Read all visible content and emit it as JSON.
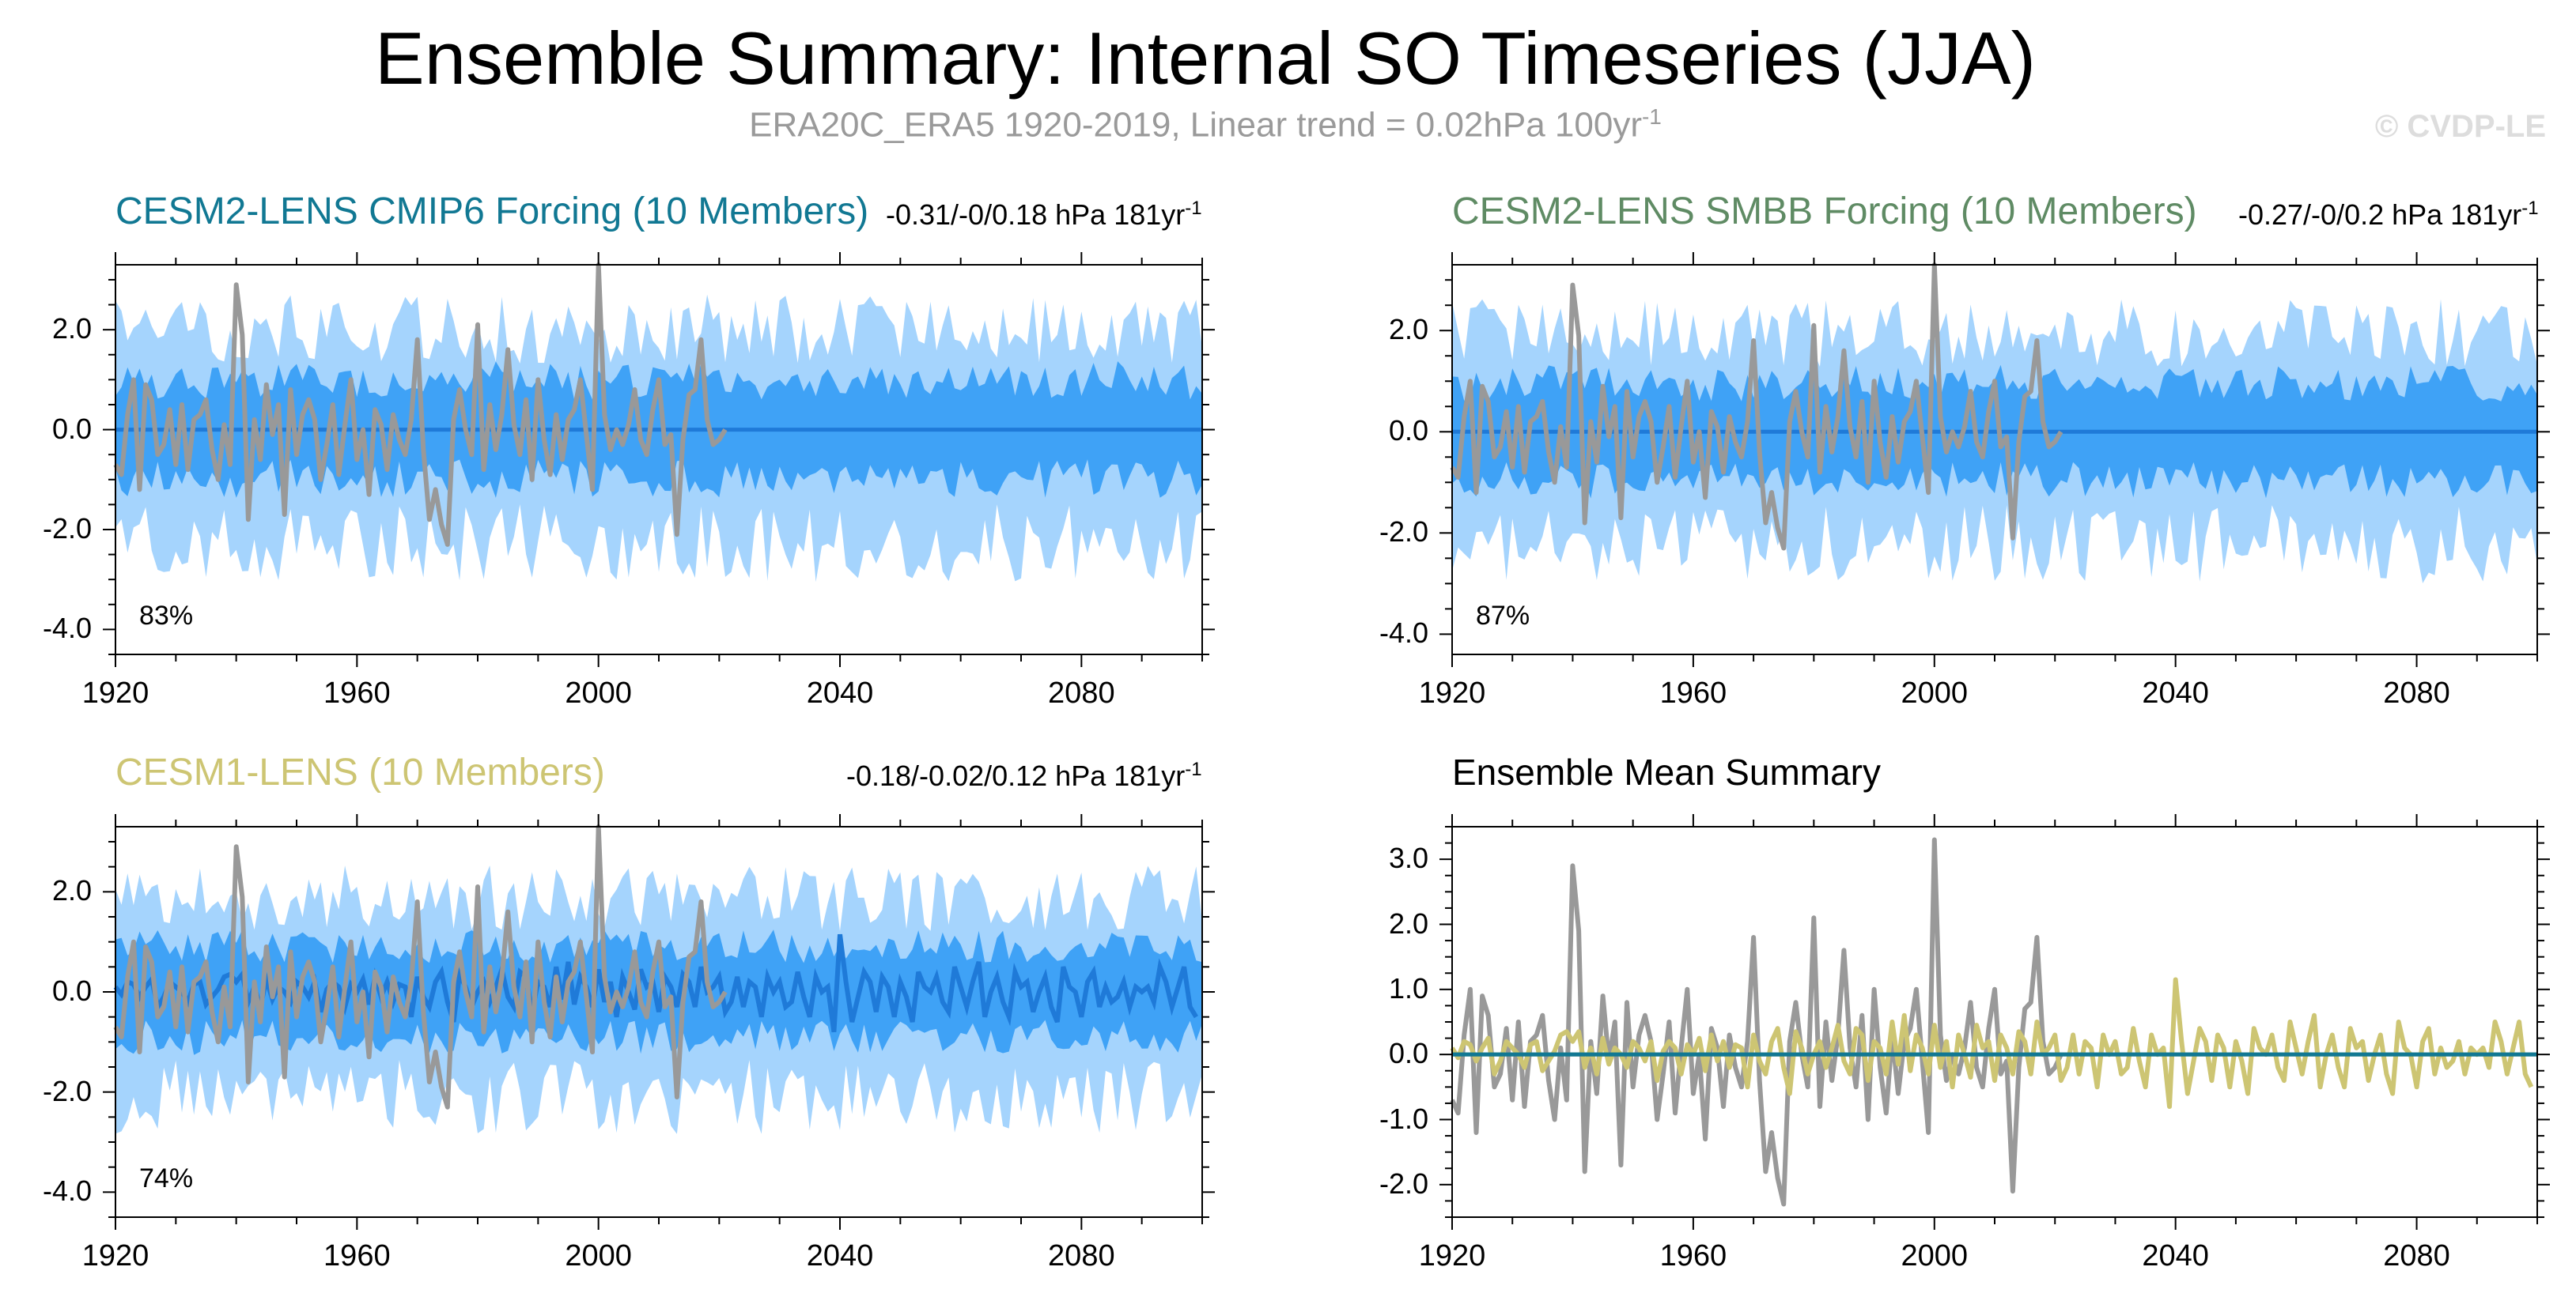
{
  "figure": {
    "title": "Ensemble Summary: Internal SO Timeseries (JJA)",
    "subtitle": "ERA20C_ERA5 1920-2019, Linear trend = 0.02hPa 100yr",
    "subtitle_sup": "-1",
    "credit": "© CVDP-LE"
  },
  "colors": {
    "band_outer": "#a5d4fd",
    "band_inner": "#3fa2f6",
    "ens_mean_line": "#1f7ad8",
    "observations": "#999999",
    "cesm2_cmip6": "#117893",
    "cesm2_smbb": "#5f8b64",
    "cesm1": "#cdc573",
    "summary_title": "#000000"
  },
  "chart_data": [
    {
      "type": "area",
      "id": "p1",
      "title": "CESM2-LENS CMIP6 Forcing (10 Members)",
      "trend_text": "-0.31/-0/0.18 hPa 181yr",
      "trend_sup": "-1",
      "pct_label": "83%",
      "xlim": [
        1920,
        2100
      ],
      "ylim": [
        -4.5,
        3.3
      ],
      "yticks": [
        -4.0,
        -2.0,
        0.0,
        2.0
      ],
      "ytick_labels": [
        "-4.0",
        "-2.0",
        "0.0",
        "2.0"
      ],
      "xticks": [
        1920,
        1960,
        2000,
        2040,
        2080
      ],
      "xtick_labels": [
        "1920",
        "1960",
        "2000",
        "2040",
        "2080"
      ],
      "ens_mean_constant": 0.0,
      "band_outer_amplitude": [
        1.75,
        2.45
      ],
      "band_inner_amplitude": [
        0.85,
        1.2
      ],
      "seed": 11
    },
    {
      "type": "area",
      "id": "p2",
      "title": "CESM2-LENS SMBB Forcing (10 Members)",
      "trend_text": "-0.27/-0/0.2 hPa 181yr",
      "trend_sup": "-1",
      "pct_label": "87%",
      "xlim": [
        1920,
        2100
      ],
      "ylim": [
        -4.4,
        3.3
      ],
      "yticks": [
        -4.0,
        -2.0,
        0.0,
        2.0
      ],
      "ytick_labels": [
        "-4.0",
        "-2.0",
        "0.0",
        "2.0"
      ],
      "xticks": [
        1920,
        1960,
        2000,
        2040,
        2080
      ],
      "xtick_labels": [
        "1920",
        "1960",
        "2000",
        "2040",
        "2080"
      ],
      "ens_mean_constant": 0.0,
      "band_outer_amplitude": [
        1.7,
        2.4
      ],
      "band_inner_amplitude": [
        0.85,
        1.15
      ],
      "seed": 23
    },
    {
      "type": "area",
      "id": "p3",
      "title": "CESM1-LENS (10 Members)",
      "trend_text": "-0.18/-0.02/0.12 hPa 181yr",
      "trend_sup": "-1",
      "pct_label": "74%",
      "xlim": [
        1920,
        2100
      ],
      "ylim": [
        -4.5,
        3.3
      ],
      "yticks": [
        -4.0,
        -2.0,
        0.0,
        2.0
      ],
      "ytick_labels": [
        "-4.0",
        "-2.0",
        "0.0",
        "2.0"
      ],
      "xticks": [
        1920,
        1960,
        2000,
        2040,
        2080
      ],
      "xtick_labels": [
        "1920",
        "1960",
        "2000",
        "2040",
        "2080"
      ],
      "ens_mean_varies": true,
      "band_outer_amplitude": [
        1.6,
        2.3
      ],
      "band_inner_amplitude": [
        0.8,
        1.1
      ],
      "seed": 37
    },
    {
      "type": "line",
      "id": "p4",
      "title": "Ensemble Mean Summary",
      "xlim": [
        1920,
        2100
      ],
      "ylim": [
        -2.5,
        3.5
      ],
      "yticks": [
        -2.0,
        -1.0,
        0.0,
        1.0,
        2.0,
        3.0
      ],
      "ytick_labels": [
        "-2.0",
        "-1.0",
        "0.0",
        "1.0",
        "2.0",
        "3.0"
      ],
      "xticks": [
        1920,
        1960,
        2000,
        2040,
        2080
      ],
      "xtick_labels": [
        "1920",
        "1960",
        "2000",
        "2040",
        "2080"
      ],
      "series": [
        {
          "name": "ERA20C_ERA5 observations",
          "color_key": "observations",
          "x_start": 1920
        },
        {
          "name": "CESM1-LENS ensemble mean",
          "color_key": "cesm1",
          "x_start": 1920
        },
        {
          "name": "CESM2-LENS SMBB ensemble mean",
          "color_key": "cesm2_smbb",
          "constant": 0.0
        },
        {
          "name": "CESM2-LENS CMIP6 ensemble mean",
          "color_key": "cesm2_cmip6",
          "constant": 0.0
        }
      ]
    }
  ],
  "observations": {
    "x_start": 1920,
    "values": [
      -0.7,
      -0.9,
      0.3,
      1.0,
      -1.2,
      0.9,
      0.6,
      -0.5,
      -0.3,
      0.4,
      -0.7,
      0.5,
      -0.8,
      0.2,
      0.3,
      0.6,
      -0.4,
      -1.0,
      0.1,
      -0.7,
      2.9,
      1.9,
      -1.8,
      0.2,
      -0.6,
      0.9,
      -0.1,
      0.5,
      -1.7,
      0.8,
      -0.5,
      0.3,
      0.6,
      0.2,
      -1.0,
      -0.3,
      0.5,
      -0.9,
      0.1,
      1.0,
      -0.6,
      0.0,
      -1.3,
      0.4,
      0.1,
      -0.8,
      0.3,
      -0.2,
      -0.5,
      0.2,
      1.8,
      -0.4,
      -1.8,
      -1.2,
      -1.9,
      -2.3,
      0.2,
      0.8,
      0.0,
      -0.5,
      2.1,
      -0.8,
      0.5,
      -0.4,
      0.3,
      1.6,
      0.1,
      -0.5,
      0.6,
      -1.0,
      1.0,
      -0.2,
      -0.9,
      0.3,
      -0.6,
      0.2,
      0.4,
      1.0,
      -0.1,
      -1.2,
      3.3,
      0.3,
      -0.4,
      0.0,
      -0.3,
      0.1,
      0.8,
      -0.2,
      -0.5,
      0.4,
      1.0,
      -0.3,
      -0.1,
      -2.1,
      -0.2,
      0.7,
      0.8,
      1.8,
      0.2,
      -0.3,
      -0.2,
      0.0
    ]
  },
  "cesm1_mean": {
    "x_start": 1920,
    "values": [
      0.1,
      -0.05,
      0.2,
      0.15,
      -0.1,
      0.1,
      0.25,
      -0.3,
      -0.1,
      0.2,
      0.1,
      0.0,
      -0.2,
      0.15,
      0.2,
      -0.25,
      -0.1,
      0.05,
      0.3,
      0.35,
      0.2,
      0.35,
      -0.2,
      0.1,
      -0.3,
      0.25,
      -0.15,
      0.1,
      0.0,
      -0.2,
      0.2,
      0.1,
      -0.1,
      0.2,
      -0.4,
      0.05,
      0.2,
      0.1,
      -0.3,
      0.15,
      0.0,
      0.25,
      -0.25,
      0.3,
      -0.1,
      0.2,
      -0.2,
      0.15,
      0.1,
      -0.5,
      0.3,
      -0.1,
      -0.3,
      0.2,
      0.4,
      -0.2,
      -0.6,
      0.35,
      0.1,
      -0.3,
      0.0,
      0.2,
      -0.2,
      0.1,
      0.45,
      -0.1,
      -0.3,
      0.4,
      0.3,
      -0.4,
      0.2,
      0.1,
      -0.3,
      0.5,
      -0.15,
      0.6,
      -0.25,
      0.3,
      0.1,
      -0.3,
      0.45,
      -0.2,
      0.2,
      -0.5,
      0.3,
      0.0,
      -0.35,
      0.45,
      0.1,
      0.2,
      -0.4,
      0.3,
      0.1,
      -0.3,
      0.35,
      0.2,
      -0.3,
      0.5,
      0.0,
      0.1,
      0.3,
      -0.4,
      -0.2,
      0.3,
      -0.3,
      0.2,
      0.1,
      -0.5,
      0.3,
      0.0,
      0.2,
      -0.3,
      -0.2,
      0.4,
      -0.1,
      -0.5,
      0.3,
      0.0,
      0.1,
      -0.8,
      1.15,
      0.2,
      -0.6,
      -0.1,
      0.4,
      0.2,
      -0.4,
      0.3,
      0.1,
      -0.5,
      0.2,
      -0.1,
      -0.6,
      0.4,
      0.1,
      0.0,
      0.3,
      -0.2,
      -0.4,
      0.5,
      0.1,
      -0.3,
      0.2,
      0.6,
      -0.5,
      0.0,
      0.3,
      -0.2,
      -0.5,
      0.4,
      0.1,
      0.2,
      -0.4,
      0.0,
      0.3,
      -0.3,
      -0.6,
      0.5,
      0.1,
      0.0,
      -0.5,
      0.2,
      0.4,
      -0.3,
      0.1,
      -0.2,
      -0.1,
      0.2,
      -0.3,
      0.1,
      0.0,
      0.1,
      -0.2,
      0.5,
      0.2,
      -0.3,
      0.1,
      0.5,
      -0.3,
      -0.5
    ]
  }
}
